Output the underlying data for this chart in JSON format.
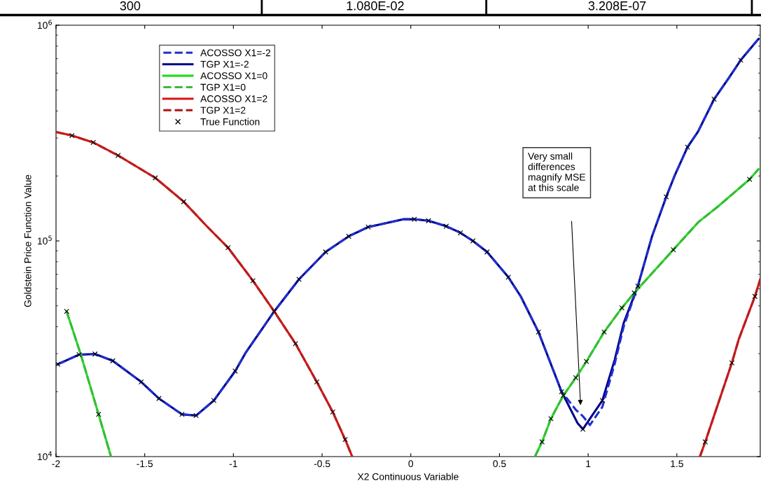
{
  "chart_data": {
    "type": "line",
    "xlabel": "X2 Continuous Variable",
    "ylabel": "Goldstein Price Function Value",
    "log": "y",
    "xlim": [
      -2,
      1.97
    ],
    "xticks": [
      -2,
      -1.5,
      -1,
      -0.5,
      0,
      0.5,
      1,
      1.5
    ],
    "ylim": [
      10000,
      1000000
    ],
    "yticks": [
      {
        "value": 10000,
        "label": "10$^{4}$"
      },
      {
        "value": 100000,
        "label": "10$^{5}$"
      },
      {
        "value": 1000000,
        "label": "10$^{6}$"
      }
    ],
    "grid": false,
    "legend": "top left",
    "annotations": [
      "300",
      "1.080E-02",
      "3.208E-07",
      "Very small\ndifferences\nmagnify MSE\nat this scale"
    ],
    "series": [
      {
        "name": "ACOSSO X1=-2",
        "color": "#1f2fd0",
        "line_style": "dashed",
        "x": [
          -1.99,
          -1.87,
          -1.78,
          -1.68,
          -1.52,
          -1.42,
          -1.29,
          -1.21,
          -1.11,
          -0.99,
          -0.93,
          -0.77,
          -0.63,
          -0.48,
          -0.35,
          -0.24,
          -0.04,
          0.02,
          0.1,
          0.2,
          0.28,
          0.35,
          0.43,
          0.55,
          0.62,
          0.72,
          0.85,
          0.93,
          0.97,
          1.01,
          1.08,
          1.15,
          1.2,
          1.28,
          1.36,
          1.44,
          1.49,
          1.56,
          1.62,
          1.71,
          1.79,
          1.86,
          1.96
        ],
        "values": [
          26800,
          29700,
          29900,
          27800,
          22200,
          18600,
          15700,
          15500,
          18200,
          24900,
          30400,
          47100,
          66400,
          88900,
          105000,
          116000,
          126000,
          126000,
          124000,
          117000,
          109000,
          100000,
          88900,
          67900,
          55300,
          37800,
          20000,
          16500,
          15400,
          14000,
          17000,
          27000,
          40000,
          61700,
          105000,
          160000,
          203000,
          272000,
          322000,
          454000,
          565000,
          689000,
          864000
        ]
      },
      {
        "name": "TGP X1=-2",
        "color": "#00008b",
        "line_style": "solid",
        "x": [
          -1.99,
          -1.87,
          -1.78,
          -1.68,
          -1.52,
          -1.42,
          -1.29,
          -1.21,
          -1.11,
          -0.99,
          -0.93,
          -0.77,
          -0.63,
          -0.48,
          -0.35,
          -0.24,
          -0.04,
          0.02,
          0.1,
          0.2,
          0.28,
          0.35,
          0.43,
          0.55,
          0.62,
          0.72,
          0.85,
          0.94,
          0.97,
          1.01,
          1.08,
          1.15,
          1.2,
          1.28,
          1.36,
          1.44,
          1.49,
          1.56,
          1.62,
          1.71,
          1.79,
          1.86,
          1.96
        ],
        "values": [
          26800,
          29700,
          29900,
          27800,
          22200,
          18600,
          15700,
          15500,
          18200,
          24900,
          30400,
          47100,
          66400,
          88900,
          105000,
          116000,
          126000,
          126000,
          124000,
          117000,
          109000,
          100000,
          88900,
          67900,
          55300,
          37800,
          20000,
          14300,
          13400,
          15000,
          18200,
          28200,
          41600,
          61700,
          105000,
          160000,
          203000,
          272000,
          322000,
          454000,
          565000,
          689000,
          864000
        ]
      },
      {
        "name": "ACOSSO X1=0",
        "color": "#22dd22",
        "line_style": "solid",
        "x": [
          -1.94,
          -1.86,
          -1.76,
          -1.69,
          null,
          0.7,
          0.74,
          0.79,
          0.86,
          0.93,
          0.99,
          1.09,
          1.19,
          1.26,
          1.48,
          1.62,
          1.73,
          1.91,
          1.96
        ],
        "values": [
          47100,
          29700,
          15700,
          10000,
          null,
          10000,
          11700,
          15000,
          19200,
          23200,
          27600,
          37800,
          48900,
          57400,
          91000,
          122000,
          144000,
          193000,
          215000
        ]
      },
      {
        "name": "TGP X1=0",
        "color": "#3cb83c",
        "line_style": "dashed",
        "x": [
          -1.94,
          -1.86,
          -1.76,
          -1.69,
          null,
          0.7,
          0.74,
          0.79,
          0.86,
          0.93,
          0.99,
          1.09,
          1.19,
          1.26,
          1.48,
          1.62,
          1.73,
          1.91,
          1.96
        ],
        "values": [
          47100,
          29700,
          15700,
          10000,
          null,
          10000,
          11700,
          15000,
          19200,
          23200,
          27600,
          37800,
          48900,
          57400,
          91000,
          122000,
          144000,
          193000,
          215000
        ]
      },
      {
        "name": "ACOSSO X1=2",
        "color": "#dd1111",
        "line_style": "solid",
        "x": [
          -2.0,
          -1.91,
          -1.79,
          -1.65,
          -1.44,
          -1.28,
          -1.15,
          -1.03,
          -0.89,
          -0.77,
          -0.65,
          -0.53,
          -0.44,
          -0.37,
          -0.33,
          null,
          1.63,
          1.66,
          1.81,
          1.85,
          1.94,
          1.97
        ],
        "values": [
          320000,
          308000,
          286000,
          249000,
          196000,
          152000,
          117000,
          93000,
          65400,
          47100,
          33400,
          22200,
          16100,
          12000,
          10000,
          null,
          10000,
          11700,
          27200,
          35200,
          55300,
          66400
        ]
      },
      {
        "name": "TGP X1=2",
        "color": "#b22222",
        "line_style": "dashed",
        "x": [
          -2.0,
          -1.91,
          -1.79,
          -1.65,
          -1.44,
          -1.28,
          -1.15,
          -1.03,
          -0.89,
          -0.77,
          -0.65,
          -0.53,
          -0.44,
          -0.37,
          -0.33,
          null,
          1.63,
          1.66,
          1.81,
          1.85,
          1.94,
          1.97
        ],
        "values": [
          320000,
          308000,
          286000,
          249000,
          196000,
          152000,
          117000,
          93000,
          65400,
          47100,
          33400,
          22200,
          16100,
          12000,
          10000,
          null,
          10000,
          11700,
          27200,
          35200,
          55300,
          66400
        ]
      },
      {
        "name": "True Function",
        "type": "scatter",
        "color": "#000000",
        "marker": "cross",
        "x": [
          -1.99,
          -1.87,
          -1.78,
          -1.68,
          -1.52,
          -1.42,
          -1.29,
          -1.21,
          -1.11,
          -0.99,
          -0.77,
          -0.63,
          -0.48,
          -0.35,
          -0.24,
          0.02,
          0.1,
          0.2,
          0.28,
          0.35,
          0.43,
          0.55,
          0.72,
          0.85,
          0.97,
          1.08,
          1.28,
          1.44,
          1.56,
          1.71,
          1.86,
          -1.94,
          -1.76,
          0.74,
          0.79,
          0.86,
          0.93,
          0.99,
          1.09,
          1.19,
          1.26,
          1.48,
          1.91,
          -1.91,
          -1.79,
          -1.65,
          -1.44,
          -1.28,
          -1.03,
          -0.89,
          -0.65,
          -0.53,
          -0.44,
          -0.37,
          1.66,
          1.81,
          1.94
        ],
        "values": [
          26800,
          29700,
          29900,
          27800,
          22200,
          18600,
          15700,
          15500,
          18200,
          24900,
          47100,
          66400,
          88900,
          105000,
          116000,
          126000,
          124000,
          117000,
          109000,
          100000,
          88900,
          67900,
          37800,
          20000,
          13400,
          18200,
          61700,
          160000,
          272000,
          454000,
          689000,
          47100,
          15700,
          11700,
          15000,
          19200,
          23200,
          27600,
          37800,
          48900,
          57400,
          91000,
          193000,
          308000,
          286000,
          249000,
          196000,
          152000,
          93000,
          65400,
          33400,
          22200,
          16100,
          12000,
          11700,
          27200,
          55300
        ]
      }
    ]
  }
}
